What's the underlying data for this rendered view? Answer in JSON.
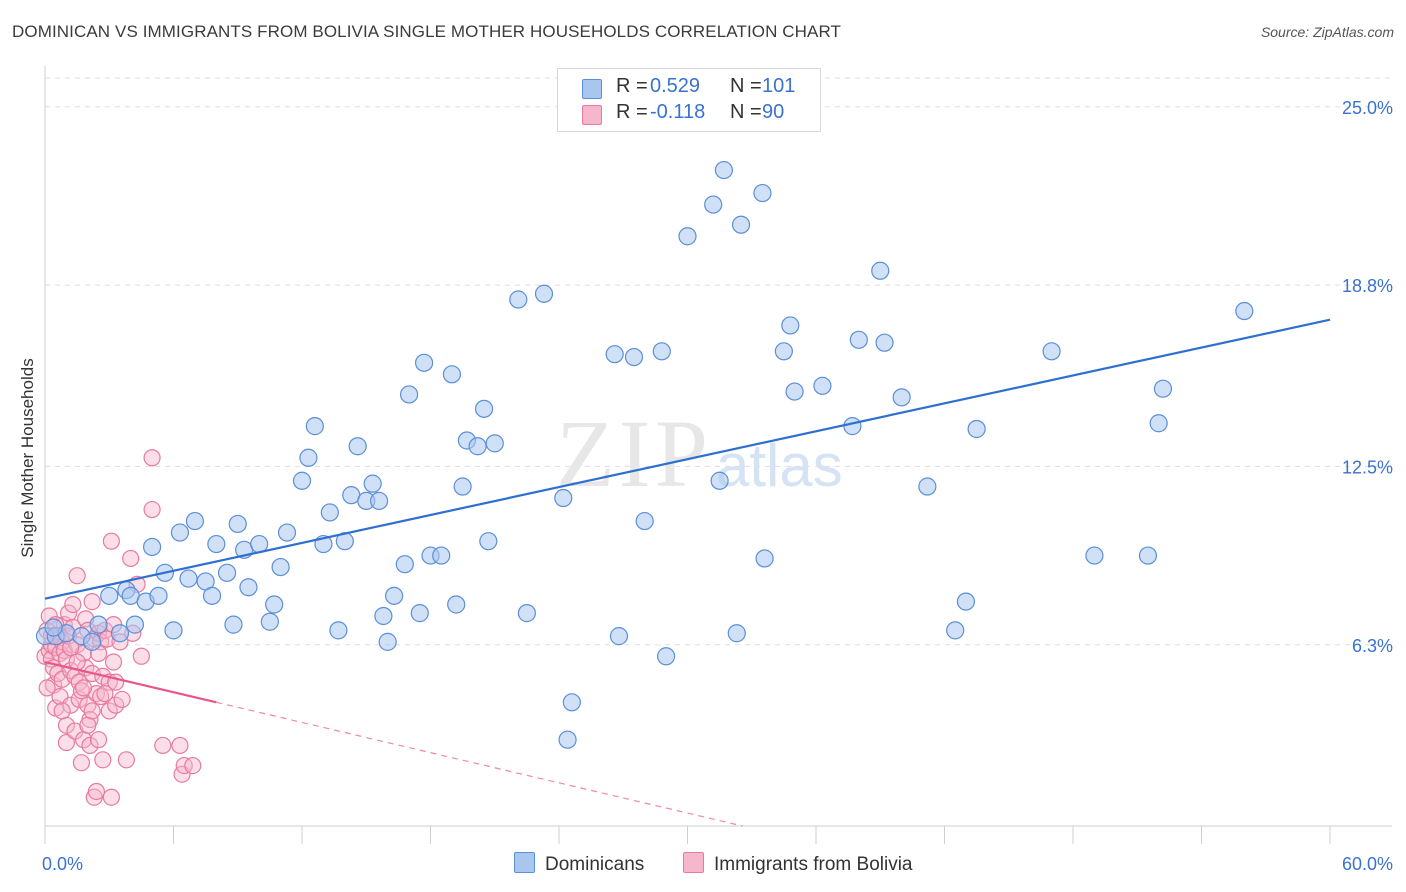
{
  "title": "DOMINICAN VS IMMIGRANTS FROM BOLIVIA SINGLE MOTHER HOUSEHOLDS CORRELATION CHART",
  "source": "Source: ZipAtlas.com",
  "watermark": {
    "zip": "ZIP",
    "atlas": "atlas"
  },
  "legend_top": {
    "rows": [
      {
        "r_label": "R =",
        "r_value": "0.529",
        "n_label": "N =",
        "n_value": "101"
      },
      {
        "r_label": "R =",
        "r_value": "-0.118",
        "n_label": "N =",
        "n_value": "90"
      }
    ]
  },
  "bottom_legend": [
    {
      "label": "Dominicans"
    },
    {
      "label": "Immigrants from Bolivia"
    }
  ],
  "colors": {
    "blue_fill": "#a9c6ef",
    "blue_stroke": "#5b8fd8",
    "blue_line": "#2e6fd0",
    "pink_fill": "#f6b6cc",
    "pink_stroke": "#e87aa0",
    "pink_line": "#e8558a",
    "tick_label": "#3a72d1",
    "grid": "#dedede"
  },
  "chart_data": {
    "type": "scatter",
    "title": "DOMINICAN VS IMMIGRANTS FROM BOLIVIA SINGLE MOTHER HOUSEHOLDS CORRELATION CHART",
    "xlabel": "",
    "ylabel": "Single Mother Households",
    "xlim": [
      0,
      60
    ],
    "ylim": [
      0,
      26
    ],
    "x_tick_labels": [
      "0.0%",
      "60.0%"
    ],
    "y_tick_labels": [
      "6.3%",
      "12.5%",
      "18.8%",
      "25.0%"
    ],
    "y_ticks": [
      6.3,
      12.5,
      18.8,
      25.0
    ],
    "grid": true,
    "series": [
      {
        "name": "Dominicans",
        "r": 0.529,
        "n": 101,
        "trend": {
          "x": [
            0,
            60
          ],
          "y": [
            7.9,
            17.6
          ]
        },
        "points": [
          [
            0.0,
            6.6
          ],
          [
            0.5,
            6.6
          ],
          [
            1.0,
            6.7
          ],
          [
            1.7,
            6.6
          ],
          [
            2.2,
            6.4
          ],
          [
            2.5,
            7.0
          ],
          [
            3.0,
            8.0
          ],
          [
            3.5,
            6.7
          ],
          [
            3.8,
            8.2
          ],
          [
            4.0,
            8.0
          ],
          [
            4.2,
            7.0
          ],
          [
            4.7,
            7.8
          ],
          [
            5.0,
            9.7
          ],
          [
            5.3,
            8.0
          ],
          [
            5.6,
            8.8
          ],
          [
            6.0,
            6.8
          ],
          [
            6.3,
            10.2
          ],
          [
            6.7,
            8.6
          ],
          [
            7.0,
            10.6
          ],
          [
            7.5,
            8.5
          ],
          [
            7.8,
            8.0
          ],
          [
            8.0,
            9.8
          ],
          [
            8.5,
            8.8
          ],
          [
            8.8,
            7.0
          ],
          [
            9.0,
            10.5
          ],
          [
            9.3,
            9.6
          ],
          [
            9.5,
            8.3
          ],
          [
            10.0,
            9.8
          ],
          [
            10.5,
            7.1
          ],
          [
            10.7,
            7.7
          ],
          [
            11.0,
            9.0
          ],
          [
            11.3,
            10.2
          ],
          [
            12.0,
            12.0
          ],
          [
            12.3,
            12.8
          ],
          [
            12.6,
            13.9
          ],
          [
            13.0,
            9.8
          ],
          [
            13.3,
            10.9
          ],
          [
            13.7,
            6.8
          ],
          [
            14.0,
            9.9
          ],
          [
            14.3,
            11.5
          ],
          [
            14.6,
            13.2
          ],
          [
            15.0,
            11.3
          ],
          [
            15.3,
            11.9
          ],
          [
            15.6,
            11.3
          ],
          [
            15.8,
            7.3
          ],
          [
            16.0,
            6.4
          ],
          [
            16.3,
            8.0
          ],
          [
            16.8,
            9.1
          ],
          [
            17.0,
            15.0
          ],
          [
            17.5,
            7.4
          ],
          [
            17.7,
            16.1
          ],
          [
            18.0,
            9.4
          ],
          [
            18.5,
            9.4
          ],
          [
            19.0,
            15.7
          ],
          [
            19.2,
            7.7
          ],
          [
            19.5,
            11.8
          ],
          [
            19.7,
            13.4
          ],
          [
            20.2,
            13.2
          ],
          [
            20.5,
            14.5
          ],
          [
            20.7,
            9.9
          ],
          [
            21.0,
            13.3
          ],
          [
            22.1,
            18.3
          ],
          [
            22.5,
            7.4
          ],
          [
            23.3,
            18.5
          ],
          [
            24.2,
            11.4
          ],
          [
            24.6,
            4.3
          ],
          [
            24.4,
            3.0
          ],
          [
            26.6,
            16.4
          ],
          [
            26.8,
            6.6
          ],
          [
            27.5,
            16.3
          ],
          [
            28.0,
            10.6
          ],
          [
            28.8,
            16.5
          ],
          [
            29.0,
            5.9
          ],
          [
            30.0,
            20.5
          ],
          [
            31.2,
            21.6
          ],
          [
            31.5,
            12.0
          ],
          [
            31.7,
            22.8
          ],
          [
            32.3,
            6.7
          ],
          [
            32.5,
            20.9
          ],
          [
            33.5,
            22.0
          ],
          [
            33.6,
            9.3
          ],
          [
            34.5,
            16.5
          ],
          [
            34.8,
            17.4
          ],
          [
            35.0,
            15.1
          ],
          [
            36.3,
            15.3
          ],
          [
            37.7,
            13.9
          ],
          [
            38.0,
            16.9
          ],
          [
            39.0,
            19.3
          ],
          [
            39.2,
            16.8
          ],
          [
            40.0,
            14.9
          ],
          [
            41.2,
            11.8
          ],
          [
            42.5,
            6.8
          ],
          [
            43.0,
            7.8
          ],
          [
            43.5,
            13.8
          ],
          [
            47.0,
            16.5
          ],
          [
            49.0,
            9.4
          ],
          [
            51.5,
            9.4
          ],
          [
            52.0,
            14.0
          ],
          [
            52.2,
            15.2
          ],
          [
            56.0,
            17.9
          ],
          [
            0.4,
            6.9
          ]
        ]
      },
      {
        "name": "Immigrants from Bolivia",
        "r": -0.118,
        "n": 90,
        "trend": {
          "x": [
            0,
            8
          ],
          "y": [
            5.7,
            4.3
          ]
        },
        "trend_dashed": {
          "x": [
            8,
            60
          ],
          "y": [
            4.3,
            -4.8
          ]
        },
        "points": [
          [
            0.0,
            5.9
          ],
          [
            0.1,
            6.8
          ],
          [
            0.2,
            6.1
          ],
          [
            0.3,
            5.8
          ],
          [
            0.3,
            6.3
          ],
          [
            0.4,
            5.5
          ],
          [
            0.4,
            4.9
          ],
          [
            0.5,
            6.2
          ],
          [
            0.5,
            4.1
          ],
          [
            0.6,
            6.6
          ],
          [
            0.6,
            5.3
          ],
          [
            0.7,
            6.0
          ],
          [
            0.7,
            4.5
          ],
          [
            0.8,
            6.4
          ],
          [
            0.8,
            5.1
          ],
          [
            0.9,
            7.0
          ],
          [
            0.9,
            6.1
          ],
          [
            1.0,
            5.8
          ],
          [
            1.0,
            3.5
          ],
          [
            1.0,
            2.9
          ],
          [
            1.1,
            7.4
          ],
          [
            1.1,
            6.6
          ],
          [
            1.2,
            5.4
          ],
          [
            1.2,
            4.2
          ],
          [
            1.3,
            7.7
          ],
          [
            1.3,
            6.9
          ],
          [
            1.4,
            5.2
          ],
          [
            1.4,
            3.3
          ],
          [
            1.5,
            8.7
          ],
          [
            1.5,
            6.3
          ],
          [
            1.6,
            5.0
          ],
          [
            1.6,
            4.4
          ],
          [
            1.7,
            4.7
          ],
          [
            1.7,
            2.2
          ],
          [
            1.8,
            6.0
          ],
          [
            1.8,
            3.0
          ],
          [
            1.9,
            7.2
          ],
          [
            1.9,
            5.5
          ],
          [
            2.0,
            6.8
          ],
          [
            2.0,
            4.2
          ],
          [
            2.1,
            3.7
          ],
          [
            2.1,
            2.8
          ],
          [
            2.2,
            7.8
          ],
          [
            2.2,
            5.3
          ],
          [
            2.3,
            6.5
          ],
          [
            2.3,
            1.0
          ],
          [
            2.4,
            4.6
          ],
          [
            2.4,
            1.2
          ],
          [
            2.5,
            6.7
          ],
          [
            2.5,
            3.0
          ],
          [
            2.6,
            6.4
          ],
          [
            2.6,
            4.5
          ],
          [
            2.7,
            5.2
          ],
          [
            2.7,
            2.3
          ],
          [
            2.8,
            6.8
          ],
          [
            2.9,
            6.5
          ],
          [
            3.0,
            5.0
          ],
          [
            3.0,
            4.0
          ],
          [
            3.1,
            9.9
          ],
          [
            3.1,
            1.0
          ],
          [
            3.2,
            7.0
          ],
          [
            3.2,
            5.7
          ],
          [
            3.3,
            4.2
          ],
          [
            3.5,
            6.4
          ],
          [
            3.6,
            4.4
          ],
          [
            3.8,
            2.3
          ],
          [
            4.0,
            9.3
          ],
          [
            4.1,
            6.7
          ],
          [
            4.3,
            8.4
          ],
          [
            4.5,
            5.9
          ],
          [
            5.0,
            12.8
          ],
          [
            5.0,
            11.0
          ],
          [
            5.5,
            2.8
          ],
          [
            6.3,
            2.8
          ],
          [
            6.4,
            1.8
          ],
          [
            6.5,
            2.1
          ],
          [
            6.9,
            2.1
          ],
          [
            0.2,
            7.3
          ],
          [
            0.5,
            7.0
          ],
          [
            0.8,
            4.0
          ],
          [
            1.2,
            6.2
          ],
          [
            1.5,
            5.7
          ],
          [
            1.8,
            4.8
          ],
          [
            2.0,
            3.5
          ],
          [
            2.2,
            4.0
          ],
          [
            2.5,
            6.0
          ],
          [
            2.8,
            4.6
          ],
          [
            3.3,
            5.0
          ],
          [
            0.1,
            4.8
          ],
          [
            0.3,
            6.6
          ]
        ]
      }
    ]
  }
}
